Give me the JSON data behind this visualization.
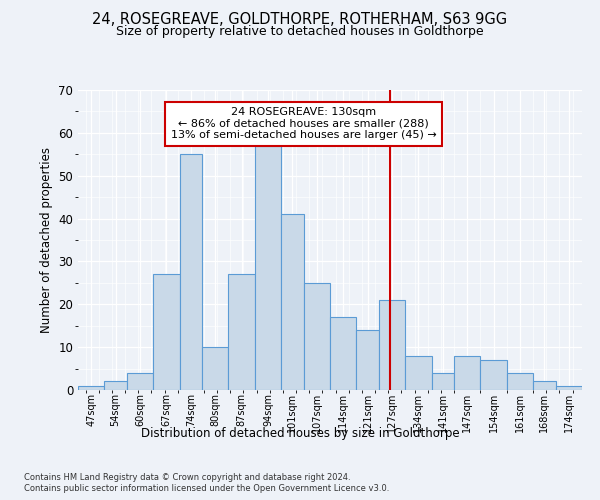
{
  "title1": "24, ROSEGREAVE, GOLDTHORPE, ROTHERHAM, S63 9GG",
  "title2": "Size of property relative to detached houses in Goldthorpe",
  "xlabel": "Distribution of detached houses by size in Goldthorpe",
  "ylabel": "Number of detached properties",
  "footnote1": "Contains HM Land Registry data © Crown copyright and database right 2024.",
  "footnote2": "Contains public sector information licensed under the Open Government Licence v3.0.",
  "annotation_title": "24 ROSEGREAVE: 130sqm",
  "annotation_line1": "← 86% of detached houses are smaller (288)",
  "annotation_line2": "13% of semi-detached houses are larger (45) →",
  "bar_left_edges": [
    47,
    54,
    60,
    67,
    74,
    80,
    87,
    94,
    101,
    107,
    114,
    121,
    127,
    134,
    141,
    147,
    154,
    161,
    168,
    174
  ],
  "bar_widths": [
    7,
    6,
    7,
    7,
    6,
    7,
    7,
    7,
    6,
    7,
    7,
    6,
    7,
    7,
    6,
    7,
    7,
    7,
    6,
    7
  ],
  "bar_heights": [
    1,
    2,
    4,
    27,
    55,
    10,
    27,
    57,
    41,
    25,
    17,
    14,
    21,
    8,
    4,
    8,
    7,
    4,
    2,
    1
  ],
  "bar_color": "#c9d9e8",
  "bar_edge_color": "#5b9bd5",
  "vline_x": 130,
  "vline_color": "#cc0000",
  "annotation_box_color": "#cc0000",
  "ylim": [
    0,
    70
  ],
  "yticks": [
    0,
    10,
    20,
    30,
    40,
    50,
    60,
    70
  ],
  "xlim": [
    47,
    181
  ],
  "background_color": "#eef2f8",
  "plot_background": "#eef2f8"
}
